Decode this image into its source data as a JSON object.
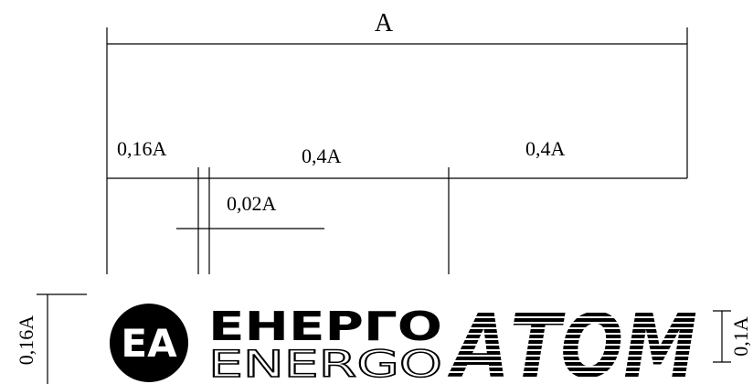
{
  "dimensions": {
    "total": "A",
    "left_width": "0,16A",
    "middle_width": "0,4A",
    "right_width": "0,4A",
    "gap": "0,02A",
    "logo_height": "0,16A",
    "text_height": "0,1A"
  },
  "logo": {
    "emblem": "EA",
    "line1": "ЕНЕРГО",
    "line2": "ENERGO",
    "word": "АТОМ"
  }
}
